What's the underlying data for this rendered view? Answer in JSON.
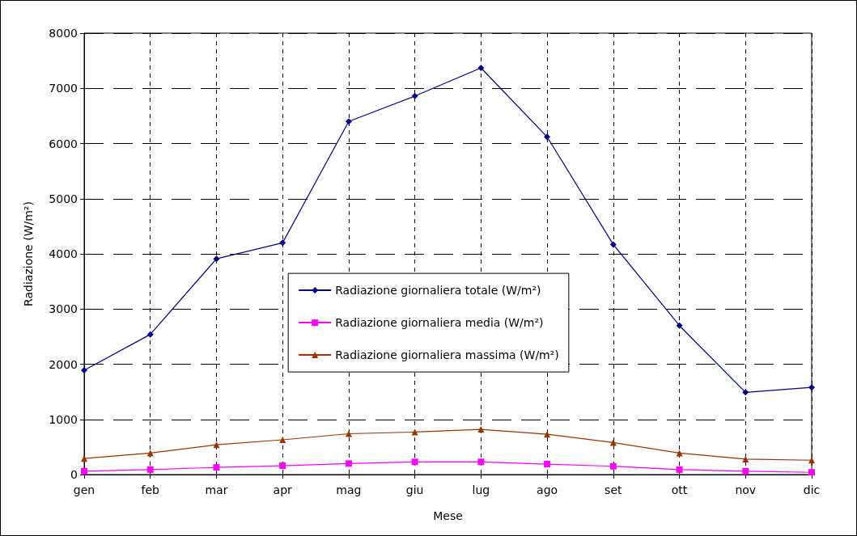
{
  "chart_data": {
    "type": "line",
    "xlabel": "Mese",
    "ylabel": "Radiazione (W/m²)",
    "categories": [
      "gen",
      "feb",
      "mar",
      "apr",
      "mag",
      "giu",
      "lug",
      "ago",
      "set",
      "ott",
      "nov",
      "dic"
    ],
    "series": [
      {
        "name": "Radiazione giornaliera totale (W/m²)",
        "color": "#000080",
        "marker": "diamond",
        "values": [
          1890,
          2540,
          3910,
          4200,
          6400,
          6860,
          7370,
          6120,
          4170,
          2700,
          1490,
          1580
        ]
      },
      {
        "name": "Radiazione giornaliera media (W/m²)",
        "color": "#ff00ff",
        "marker": "square",
        "values": [
          60,
          90,
          130,
          160,
          200,
          230,
          230,
          190,
          150,
          90,
          60,
          40
        ]
      },
      {
        "name": "Radiazione giornaliera massima (W/m²)",
        "color": "#993300",
        "marker": "triangle",
        "values": [
          290,
          390,
          540,
          630,
          740,
          770,
          820,
          730,
          580,
          390,
          280,
          260
        ]
      }
    ],
    "ylim": [
      0,
      8000
    ],
    "yticks": [
      0,
      1000,
      2000,
      3000,
      4000,
      5000,
      6000,
      7000,
      8000
    ],
    "grid": true,
    "legend": "center",
    "line_style": "solid"
  }
}
